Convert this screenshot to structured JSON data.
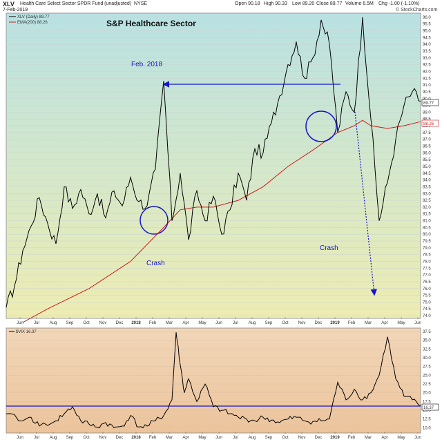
{
  "header": {
    "ticker": "XLV",
    "fund_name": "Health Care Select Sector SPDR Fund (unadjusted)",
    "exchange": "NYSE",
    "date": "7-Feb-2019",
    "open": "Open 90.18",
    "high": "High 90.33",
    "low": "Low 89.20",
    "close": "Close 89.77",
    "volume": "Volume 6.5M",
    "chg": "Chg -1.00 (-1.10%)",
    "watermark": "© StockCharts.com"
  },
  "colors": {
    "price_line": "#000000",
    "ema_line": "#d01818",
    "annotation": "#1515c8",
    "bg_top": "#b8e0e2",
    "bg_bottom": "#ecedb0",
    "vix_bg": "#efc8a0"
  },
  "chart_data": [
    {
      "type": "line",
      "title": "S&P Healthcare Sector",
      "legend": [
        "XLV (Daily) 89.77",
        "EMA(200) 88.26"
      ],
      "x_months": [
        "Jun",
        "Jul",
        "Aug",
        "Sep",
        "Oct",
        "Nov",
        "Dec",
        "2018",
        "Feb",
        "Mar",
        "Apr",
        "May",
        "Jun",
        "Jul",
        "Aug",
        "Sep",
        "Oct",
        "Nov",
        "Dec",
        "2019",
        "Feb",
        "Mar",
        "Apr",
        "May",
        "Jun"
      ],
      "y_ticks": [
        74.0,
        74.5,
        75.0,
        75.5,
        76.0,
        76.5,
        77.0,
        77.5,
        78.0,
        78.5,
        79.0,
        79.5,
        80.0,
        80.5,
        81.0,
        81.5,
        82.0,
        82.5,
        83.0,
        83.5,
        84.0,
        84.5,
        85.0,
        85.5,
        86.0,
        86.5,
        87.0,
        87.5,
        88.0,
        88.5,
        89.0,
        89.5,
        90.0,
        90.5,
        91.0,
        91.5,
        92.0,
        92.5,
        93.0,
        93.5,
        94.0,
        94.5,
        95.0,
        95.5,
        96.0
      ],
      "ylim": [
        73.8,
        96.3
      ],
      "last_value_badges": [
        "89.77",
        "88.26"
      ],
      "series": [
        {
          "name": "XLV (Daily) 89.77",
          "points": [
            [
              0,
              74.6
            ],
            [
              1,
              76.2
            ],
            [
              2,
              78.8
            ],
            [
              3,
              80.6
            ],
            [
              4,
              82.7
            ],
            [
              5,
              80.8
            ],
            [
              6,
              79.3
            ],
            [
              7,
              83.5
            ],
            [
              8,
              81.9
            ],
            [
              9,
              83.3
            ],
            [
              10,
              81.5
            ],
            [
              11,
              83.0
            ],
            [
              12,
              81.2
            ],
            [
              13,
              83.2
            ],
            [
              14,
              82.1
            ],
            [
              15,
              84.2
            ],
            [
              16,
              82.4
            ],
            [
              17,
              82.1
            ],
            [
              18,
              84.8
            ],
            [
              19,
              91.3
            ],
            [
              20,
              81.0
            ],
            [
              21,
              84.5
            ],
            [
              22,
              79.6
            ],
            [
              23,
              83.2
            ],
            [
              24,
              81.0
            ],
            [
              25,
              82.8
            ],
            [
              26,
              80.0
            ],
            [
              27,
              81.8
            ],
            [
              28,
              84.5
            ],
            [
              29,
              82.5
            ],
            [
              30,
              86.3
            ],
            [
              31,
              86.0
            ],
            [
              32,
              88.2
            ],
            [
              33,
              90.2
            ],
            [
              34,
              92.5
            ],
            [
              35,
              94.2
            ],
            [
              36,
              91.5
            ],
            [
              37,
              93.0
            ],
            [
              38,
              95.8
            ],
            [
              39,
              94.0
            ],
            [
              40,
              87.5
            ],
            [
              41,
              90.5
            ],
            [
              42,
              89.0
            ],
            [
              43,
              96.0
            ],
            [
              44,
              88.5
            ],
            [
              45,
              81.0
            ],
            [
              46,
              83.8
            ],
            [
              47,
              87.0
            ],
            [
              48,
              89.5
            ],
            [
              49,
              90.5
            ],
            [
              50,
              89.8
            ]
          ]
        },
        {
          "name": "EMA(200) 88.26",
          "points": [
            [
              2,
              73.5
            ],
            [
              5,
              74.5
            ],
            [
              10,
              76.0
            ],
            [
              15,
              78.0
            ],
            [
              19,
              80.5
            ],
            [
              21,
              81.8
            ],
            [
              23,
              82.0
            ],
            [
              25,
              82.0
            ],
            [
              28,
              82.5
            ],
            [
              31,
              83.5
            ],
            [
              34,
              85.0
            ],
            [
              37,
              86.2
            ],
            [
              40,
              87.5
            ],
            [
              42,
              88.0
            ],
            [
              43,
              88.4
            ],
            [
              44,
              88.0
            ],
            [
              46,
              87.8
            ],
            [
              48,
              88.0
            ],
            [
              50,
              88.3
            ]
          ]
        }
      ],
      "annotations": [
        {
          "text": "Feb. 2018"
        },
        {
          "text": "Crash"
        },
        {
          "text": "Crash"
        }
      ]
    },
    {
      "type": "line",
      "legend": [
        "$VIX 16.37"
      ],
      "y_ticks": [
        10.0,
        12.5,
        15.0,
        17.5,
        20.0,
        22.5,
        25.0,
        27.5,
        30.0,
        32.5,
        35.0,
        37.5
      ],
      "ylim": [
        8.5,
        38.5
      ],
      "reference_level": 16.2,
      "last_value_badge": "16.37",
      "series": [
        {
          "name": "$VIX 16.37",
          "points": [
            [
              0,
              14.0
            ],
            [
              2,
              12.0
            ],
            [
              3,
              13.0
            ],
            [
              4,
              10.5
            ],
            [
              6,
              12.0
            ],
            [
              7,
              14.0
            ],
            [
              8,
              16.0
            ],
            [
              9,
              12.0
            ],
            [
              10,
              11.0
            ],
            [
              11,
              10.2
            ],
            [
              12,
              11.5
            ],
            [
              13,
              10.0
            ],
            [
              14,
              10.5
            ],
            [
              15,
              13.5
            ],
            [
              16,
              10.2
            ],
            [
              17,
              10.5
            ],
            [
              18,
              12.0
            ],
            [
              19,
              13.5
            ],
            [
              20,
              18.0
            ],
            [
              20.5,
              37.3
            ],
            [
              21,
              28.0
            ],
            [
              21.5,
              20.0
            ],
            [
              22,
              24.0
            ],
            [
              23,
              17.5
            ],
            [
              24,
              22.5
            ],
            [
              25,
              16.0
            ],
            [
              26,
              15.0
            ],
            [
              27,
              14.0
            ],
            [
              28,
              13.0
            ],
            [
              29,
              12.5
            ],
            [
              30,
              12.0
            ],
            [
              31,
              13.0
            ],
            [
              32,
              12.2
            ],
            [
              33,
              11.5
            ],
            [
              34,
              12.5
            ],
            [
              35,
              13.0
            ],
            [
              36,
              12.0
            ],
            [
              37,
              11.8
            ],
            [
              38,
              12.0
            ],
            [
              39,
              12.5
            ],
            [
              40,
              23.0
            ],
            [
              41,
              18.0
            ],
            [
              42,
              21.0
            ],
            [
              43,
              18.0
            ],
            [
              44,
              20.0
            ],
            [
              45,
              25.0
            ],
            [
              46,
              36.0
            ],
            [
              47,
              24.0
            ],
            [
              48,
              19.0
            ],
            [
              49,
              18.0
            ],
            [
              50,
              16.4
            ]
          ]
        }
      ]
    }
  ]
}
